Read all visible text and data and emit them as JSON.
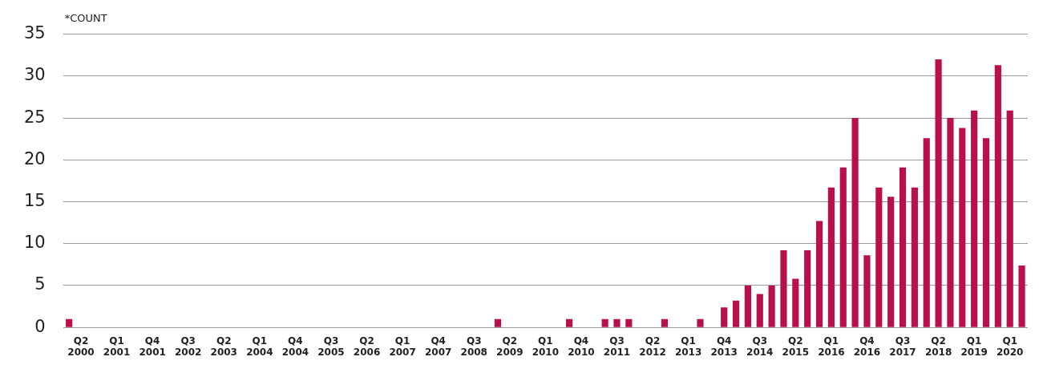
{
  "chart_data": {
    "type": "bar",
    "ylabel": "*COUNT",
    "categories": [
      null,
      "Q2 2000",
      null,
      null,
      "Q1 2001",
      null,
      null,
      "Q4 2001",
      null,
      null,
      "Q3 2002",
      null,
      null,
      "Q2 2003",
      null,
      null,
      "Q1 2004",
      null,
      null,
      "Q4 2004",
      null,
      null,
      "Q3 2005",
      null,
      null,
      "Q2 2006",
      null,
      null,
      "Q1 2007",
      null,
      null,
      "Q4 2007",
      null,
      null,
      "Q3 2008",
      null,
      null,
      "Q2 2009",
      null,
      null,
      "Q1 2010",
      null,
      null,
      "Q4 2010",
      null,
      null,
      "Q3 2011",
      null,
      null,
      "Q2 2012",
      null,
      null,
      "Q1 2013",
      null,
      null,
      "Q4 2013",
      null,
      null,
      "Q3 2014",
      null,
      null,
      "Q2 2015",
      null,
      null,
      "Q1 2016",
      null,
      null,
      "Q4 2016",
      null,
      null,
      "Q3 2017",
      null,
      null,
      "Q2 2018",
      null,
      null,
      "Q1 2019",
      null,
      null,
      "Q1 2020",
      null
    ],
    "values": [
      1,
      0,
      0,
      0,
      0,
      0,
      0,
      0,
      0,
      0,
      0,
      0,
      0,
      0,
      0,
      0,
      0,
      0,
      0,
      0,
      0,
      0,
      0,
      0,
      0,
      0,
      0,
      0,
      0,
      0,
      0,
      0,
      0,
      0,
      0,
      0,
      1,
      0,
      0,
      0,
      0,
      0,
      1,
      0,
      0,
      1,
      1,
      1,
      0,
      0,
      1,
      0,
      0,
      1,
      0,
      2.4,
      3.2,
      5,
      4,
      5,
      9.2,
      5.8,
      9.2,
      12.7,
      16.7,
      19.1,
      25,
      8.6,
      16.7,
      15.6,
      19.1,
      16.7,
      22.6,
      32,
      25,
      23.8,
      25.9,
      22.6,
      31.3,
      25.9,
      7.4
    ],
    "color": "#b90f4b",
    "ylim": [
      0,
      35
    ],
    "yticks": [
      0,
      5,
      10,
      15,
      20,
      25,
      30,
      35
    ],
    "grid": "y"
  }
}
